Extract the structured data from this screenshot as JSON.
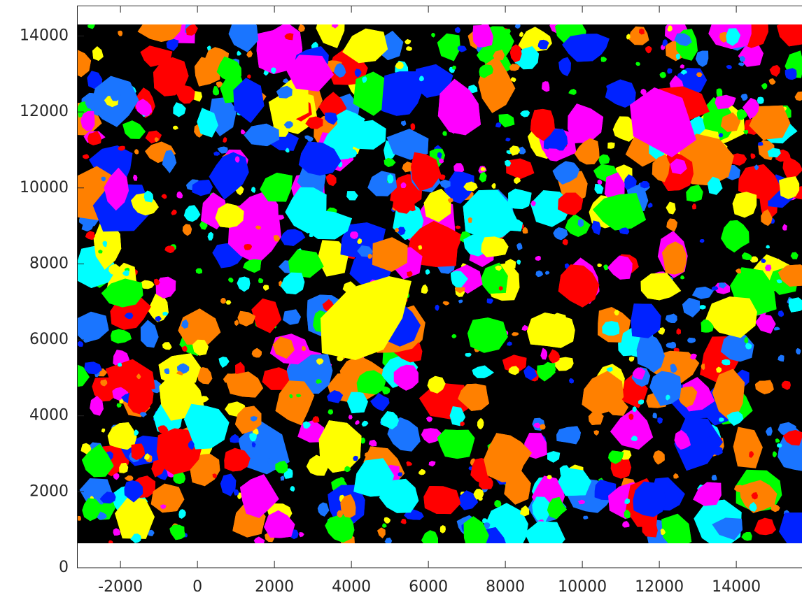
{
  "chart_data": {
    "type": "image",
    "xlim": [
      -3130,
      15780
    ],
    "xticks": [
      -2000,
      0,
      2000,
      4000,
      6000,
      8000,
      10000,
      12000,
      14000
    ],
    "ylim": [
      0,
      14800
    ],
    "yticks": [
      0,
      2000,
      4000,
      6000,
      8000,
      10000,
      12000,
      14000
    ]
  }
}
